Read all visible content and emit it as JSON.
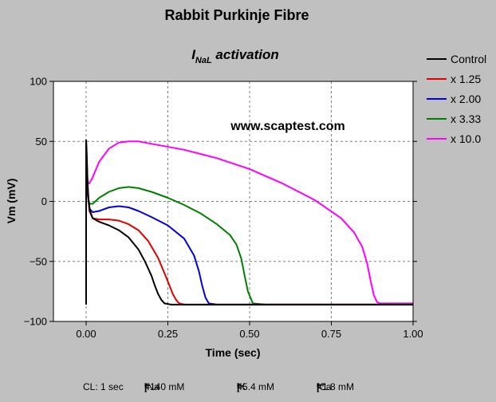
{
  "chart_data": {
    "type": "line",
    "title": "Rabbit Purkinje Fibre",
    "subtitle_main": "I",
    "subtitle_sub": "NaL",
    "subtitle_rest": " activation",
    "xlabel": "Time (sec)",
    "ylabel": "Vm (mV)",
    "watermark": "www.scaptest.com",
    "xlim": [
      -0.1,
      1.0
    ],
    "ylim": [
      -100,
      100
    ],
    "xticks": [
      0.0,
      0.25,
      0.5,
      0.75,
      1.0
    ],
    "xtick_labels": [
      "0.00",
      "0.25",
      "0.50",
      "0.75",
      "1.00"
    ],
    "yticks": [
      -100,
      -50,
      0,
      50,
      100
    ],
    "ytick_labels": [
      "−100",
      "−50",
      "0",
      "50",
      "100"
    ],
    "grid": true,
    "legend_position": "right",
    "series": [
      {
        "name": "Control",
        "color": "#000000",
        "x": [
          0.0,
          0.0,
          0.002,
          0.004,
          0.007,
          0.012,
          0.02,
          0.04,
          0.07,
          0.1,
          0.13,
          0.16,
          0.18,
          0.2,
          0.21,
          0.22,
          0.23,
          0.24,
          0.26,
          0.3,
          0.5,
          0.75,
          1.0
        ],
        "y": [
          -86,
          51,
          40,
          20,
          2,
          -8,
          -14,
          -17,
          -20,
          -24,
          -30,
          -40,
          -50,
          -62,
          -70,
          -77,
          -82,
          -85,
          -86,
          -86,
          -86,
          -86,
          -86
        ]
      },
      {
        "name": "x 1.25",
        "color": "#e00000",
        "x": [
          0.0,
          0.002,
          0.005,
          0.01,
          0.02,
          0.04,
          0.07,
          0.1,
          0.13,
          0.16,
          0.19,
          0.22,
          0.24,
          0.255,
          0.265,
          0.275,
          0.285,
          0.3,
          0.5,
          0.75,
          1.0
        ],
        "y": [
          50,
          35,
          10,
          -8,
          -14,
          -15,
          -15,
          -16,
          -19,
          -24,
          -33,
          -47,
          -60,
          -70,
          -77,
          -82,
          -85,
          -86,
          -86,
          -86,
          -86
        ]
      },
      {
        "name": "x 2.00",
        "color": "#0000e0",
        "x": [
          0.0,
          0.002,
          0.005,
          0.01,
          0.02,
          0.04,
          0.07,
          0.1,
          0.13,
          0.16,
          0.2,
          0.25,
          0.3,
          0.33,
          0.345,
          0.355,
          0.365,
          0.375,
          0.4,
          0.5,
          0.75,
          1.0
        ],
        "y": [
          48,
          30,
          5,
          -6,
          -9,
          -8,
          -5,
          -4,
          -5,
          -8,
          -13,
          -20,
          -31,
          -45,
          -58,
          -70,
          -80,
          -85,
          -86,
          -86,
          -86,
          -86
        ]
      },
      {
        "name": "x 3.33",
        "color": "#008000",
        "x": [
          0.0,
          0.002,
          0.005,
          0.01,
          0.02,
          0.04,
          0.07,
          0.1,
          0.13,
          0.16,
          0.2,
          0.25,
          0.3,
          0.35,
          0.4,
          0.44,
          0.46,
          0.475,
          0.485,
          0.495,
          0.51,
          0.55,
          0.75,
          1.0
        ],
        "y": [
          45,
          25,
          5,
          -2,
          -2,
          3,
          8,
          11,
          12,
          11,
          8,
          3,
          -3,
          -10,
          -19,
          -28,
          -36,
          -48,
          -62,
          -75,
          -85,
          -86,
          -86,
          -86
        ]
      },
      {
        "name": "x 10.0",
        "color": "#ff00ff",
        "x": [
          0.0,
          0.003,
          0.006,
          0.01,
          0.02,
          0.04,
          0.07,
          0.1,
          0.13,
          0.16,
          0.2,
          0.3,
          0.4,
          0.5,
          0.6,
          0.7,
          0.78,
          0.82,
          0.845,
          0.86,
          0.87,
          0.88,
          0.89,
          0.9,
          0.95,
          1.0
        ],
        "y": [
          38,
          20,
          15,
          15,
          20,
          33,
          44,
          49,
          50,
          50,
          48,
          43,
          36,
          27,
          15,
          1,
          -14,
          -26,
          -38,
          -52,
          -66,
          -78,
          -84,
          -85,
          -85,
          -85
        ]
      }
    ]
  },
  "footer": {
    "cl": "CL: 1 sec",
    "na_label": "[Na",
    "na_sup": "+",
    "na_sub": "e",
    "na_value": "=140 mM",
    "k_label": "[K",
    "k_sup": "+",
    "k_sub": "e",
    "k_value": "=5.4 mM",
    "ca_label": "[Ca",
    "ca_sup": "++",
    "ca_sub": "e",
    "ca_value": "=1.8 mM",
    "bracket": "]"
  }
}
